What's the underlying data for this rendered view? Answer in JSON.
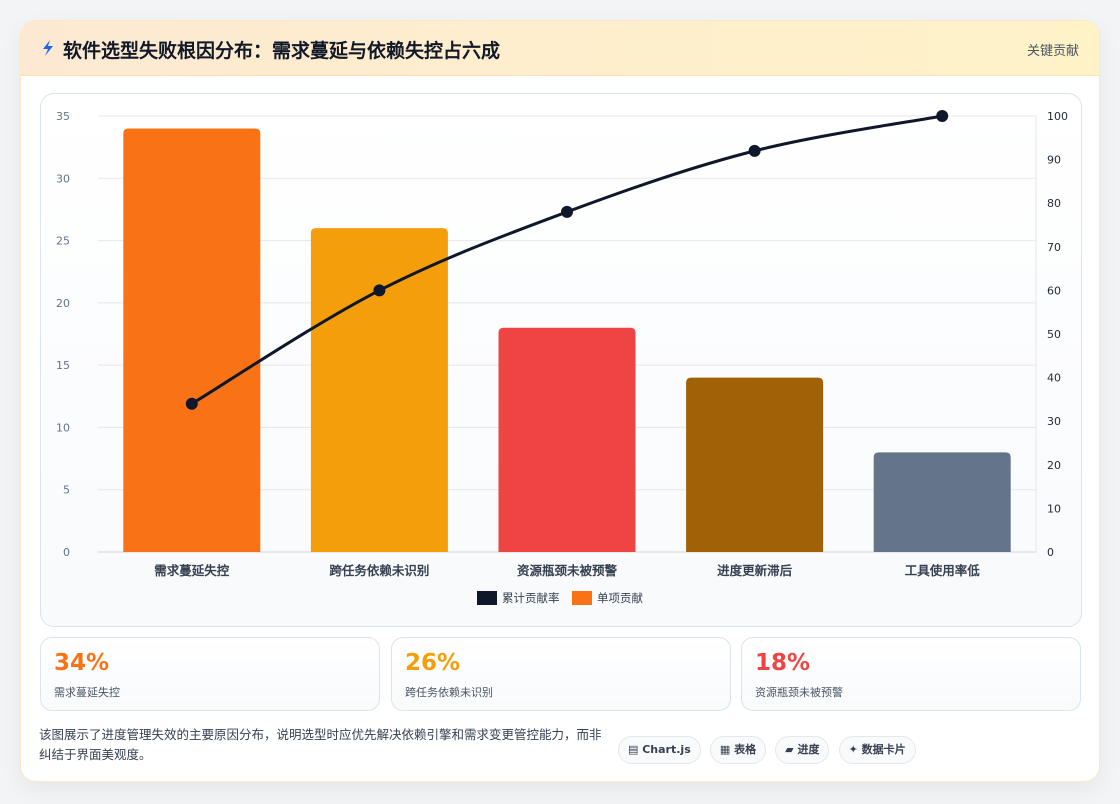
{
  "header": {
    "icon": "lightning-icon",
    "title": "软件选型失败根因分布：需求蔓延与依赖失控占六成",
    "tag": "关键贡献"
  },
  "colors": {
    "line": "#0f172a",
    "bars": [
      "#f97316",
      "#f59e0b",
      "#ef4444",
      "#a16207",
      "#64748b"
    ],
    "legend_bar": "#f97316"
  },
  "chart_data": {
    "type": "bar",
    "categories": [
      "需求蔓延失控",
      "跨任务依赖未识别",
      "资源瓶颈未被预警",
      "进度更新滞后",
      "工具使用率低"
    ],
    "series": [
      {
        "name": "单项贡献",
        "type": "bar",
        "axis": "left",
        "values": [
          34,
          26,
          18,
          14,
          8
        ]
      },
      {
        "name": "累计贡献率",
        "type": "line",
        "axis": "right",
        "values": [
          34,
          60,
          78,
          92,
          100
        ]
      }
    ],
    "y_left": {
      "range": [
        0,
        35
      ],
      "ticks": [
        "0",
        "5",
        "10",
        "15",
        "20",
        "25",
        "30",
        "35"
      ]
    },
    "y_right": {
      "range": [
        0,
        100
      ],
      "ticks": [
        "0",
        "10",
        "20",
        "30",
        "40",
        "50",
        "60",
        "70",
        "80",
        "90",
        "100"
      ]
    },
    "grid": true,
    "legend": {
      "position": "bottom",
      "items": [
        "累计贡献率",
        "单项贡献"
      ]
    }
  },
  "stats": [
    {
      "value": "34%",
      "label": "需求蔓延失控",
      "color": "#f97316"
    },
    {
      "value": "26%",
      "label": "跨任务依赖未识别",
      "color": "#f59e0b"
    },
    {
      "value": "18%",
      "label": "资源瓶颈未被预警",
      "color": "#ef4444"
    }
  ],
  "description": "该图展示了进度管理失效的主要原因分布，说明选型时应优先解决依赖引擎和需求变更管控能力，而非纠结于界面美观度。",
  "chips": [
    "Chart.js",
    "表格",
    "进度",
    "数据卡片"
  ]
}
